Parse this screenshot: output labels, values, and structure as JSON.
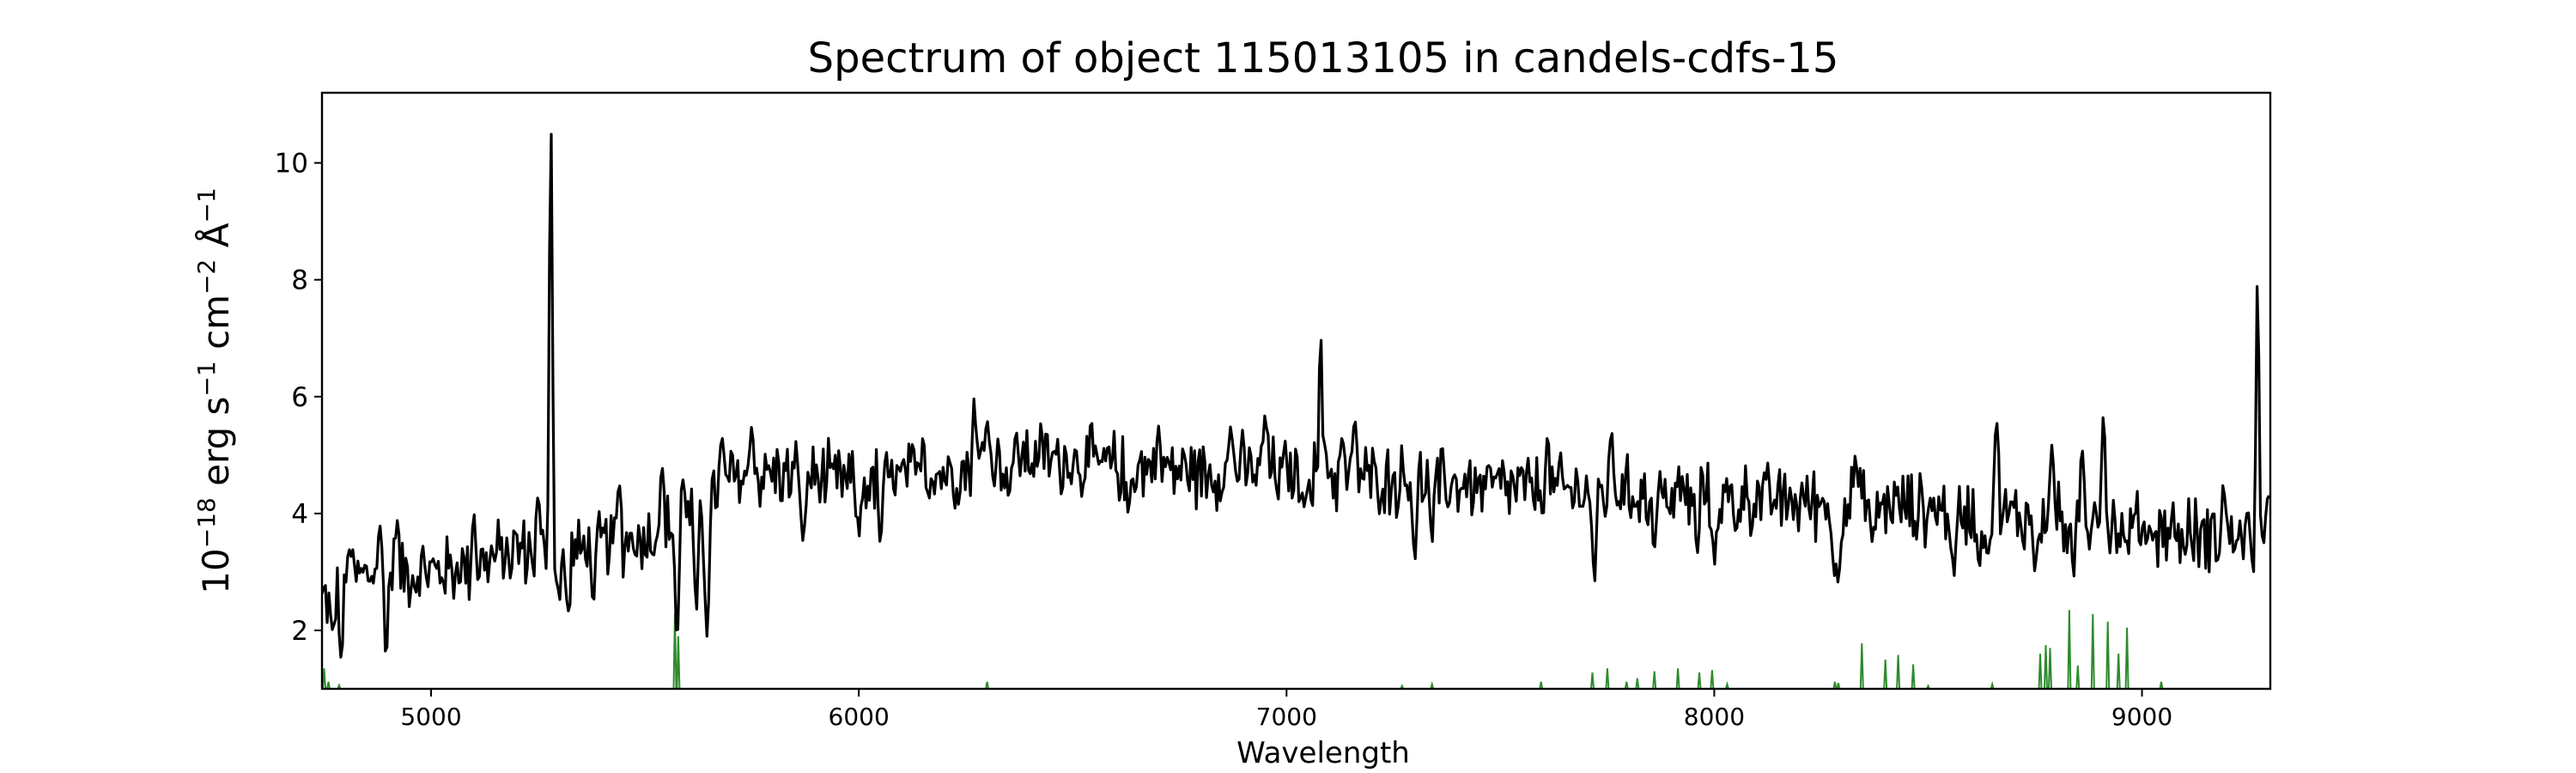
{
  "chart_data": {
    "type": "line",
    "title": "Spectrum of object 115013105 in candels-cdfs-15",
    "xlabel": "Wavelength",
    "ylabel_parts": {
      "base": "10",
      "exp1": "−18",
      "mid1": " erg s",
      "exp2": "−1",
      "mid2": " cm",
      "exp3": "−2",
      "mid3": " Å",
      "exp4": "−1"
    },
    "xlim": [
      4745,
      9300
    ],
    "ylim": [
      1.0,
      11.2
    ],
    "xticks": [
      5000,
      6000,
      7000,
      8000,
      9000
    ],
    "yticks": [
      2,
      4,
      6,
      8,
      10
    ],
    "grid": false,
    "legend": "none",
    "series": [
      {
        "color": "#000000",
        "baseline": [
          [
            4745,
            2.5
          ],
          [
            4800,
            2.9
          ],
          [
            4900,
            3.0
          ],
          [
            5000,
            3.0
          ],
          [
            5100,
            3.1
          ],
          [
            5200,
            3.4
          ],
          [
            5300,
            3.2
          ],
          [
            5400,
            3.5
          ],
          [
            5500,
            3.6
          ],
          [
            5600,
            3.9
          ],
          [
            5700,
            4.6
          ],
          [
            5800,
            4.7
          ],
          [
            5900,
            4.6
          ],
          [
            6000,
            4.5
          ],
          [
            6100,
            4.6
          ],
          [
            6200,
            4.7
          ],
          [
            6300,
            4.9
          ],
          [
            6400,
            5.0
          ],
          [
            6500,
            4.9
          ],
          [
            6600,
            4.8
          ],
          [
            6700,
            4.8
          ],
          [
            6800,
            4.7
          ],
          [
            6900,
            4.75
          ],
          [
            7000,
            4.7
          ],
          [
            7200,
            4.6
          ],
          [
            7400,
            4.5
          ],
          [
            7600,
            4.4
          ],
          [
            7800,
            4.35
          ],
          [
            8000,
            4.3
          ],
          [
            8200,
            4.2
          ],
          [
            8400,
            4.15
          ],
          [
            8600,
            4.0
          ],
          [
            8800,
            3.9
          ],
          [
            9000,
            3.75
          ],
          [
            9200,
            3.6
          ],
          [
            9300,
            3.7
          ]
        ],
        "features": [
          [
            4770,
            2.0,
            8
          ],
          [
            4790,
            1.5,
            6
          ],
          [
            4810,
            3.4,
            6
          ],
          [
            4880,
            3.8,
            6
          ],
          [
            4895,
            1.5,
            5
          ],
          [
            4920,
            3.9,
            6
          ],
          [
            5100,
            4.0,
            6
          ],
          [
            5250,
            4.3,
            6
          ],
          [
            5280,
            10.8,
            5
          ],
          [
            5300,
            2.5,
            5
          ],
          [
            5320,
            2.3,
            6
          ],
          [
            5380,
            2.5,
            6
          ],
          [
            5440,
            4.5,
            6
          ],
          [
            5540,
            4.8,
            6
          ],
          [
            5575,
            1.8,
            6
          ],
          [
            5590,
            4.6,
            6
          ],
          [
            5620,
            2.3,
            6
          ],
          [
            5645,
            1.9,
            7
          ],
          [
            5680,
            5.3,
            6
          ],
          [
            5750,
            5.5,
            6
          ],
          [
            5870,
            3.5,
            6
          ],
          [
            6000,
            3.6,
            6
          ],
          [
            6050,
            3.5,
            6
          ],
          [
            6150,
            5.3,
            6
          ],
          [
            6270,
            6.0,
            5
          ],
          [
            6300,
            5.6,
            6
          ],
          [
            6350,
            4.3,
            6
          ],
          [
            6630,
            4.0,
            6
          ],
          [
            6700,
            5.5,
            6
          ],
          [
            6870,
            5.5,
            6
          ],
          [
            6950,
            5.7,
            6
          ],
          [
            7040,
            4.1,
            6
          ],
          [
            7080,
            7.05,
            5
          ],
          [
            7090,
            5.2,
            6
          ],
          [
            7130,
            5.3,
            6
          ],
          [
            7160,
            5.6,
            6
          ],
          [
            7300,
            3.2,
            6
          ],
          [
            7340,
            3.5,
            6
          ],
          [
            7610,
            5.3,
            6
          ],
          [
            7720,
            2.8,
            6
          ],
          [
            7760,
            5.4,
            6
          ],
          [
            7860,
            3.4,
            6
          ],
          [
            7960,
            3.3,
            6
          ],
          [
            8000,
            3.1,
            6
          ],
          [
            8050,
            3.7,
            6
          ],
          [
            8280,
            2.9,
            6
          ],
          [
            8290,
            2.8,
            6
          ],
          [
            8330,
            5.0,
            6
          ],
          [
            8370,
            3.5,
            6
          ],
          [
            8560,
            2.9,
            6
          ],
          [
            8620,
            3.1,
            6
          ],
          [
            8640,
            3.3,
            6
          ],
          [
            8660,
            5.6,
            6
          ],
          [
            8750,
            3.0,
            6
          ],
          [
            8790,
            5.2,
            6
          ],
          [
            8840,
            2.9,
            6
          ],
          [
            8860,
            5.1,
            6
          ],
          [
            8890,
            4.2,
            6
          ],
          [
            8910,
            5.7,
            6
          ],
          [
            8960,
            3.5,
            6
          ],
          [
            9020,
            3.7,
            6
          ],
          [
            9100,
            3.3,
            6
          ],
          [
            9190,
            4.5,
            6
          ],
          [
            9260,
            3.0,
            6
          ],
          [
            9270,
            8.05,
            5
          ],
          [
            9285,
            3.5,
            6
          ],
          [
            9295,
            4.3,
            6
          ]
        ],
        "noise_amplitude": 0.5
      },
      {
        "color": "#2e8b2e",
        "baseline_value": 1.0,
        "lines": [
          [
            4750,
            1.35
          ],
          [
            4760,
            1.12
          ],
          [
            4785,
            1.06
          ],
          [
            5570,
            2.3
          ],
          [
            5578,
            1.9
          ],
          [
            6300,
            1.12
          ],
          [
            7270,
            1.05
          ],
          [
            7340,
            1.08
          ],
          [
            7595,
            1.12
          ],
          [
            7715,
            1.28
          ],
          [
            7750,
            1.35
          ],
          [
            7795,
            1.12
          ],
          [
            7820,
            1.18
          ],
          [
            7860,
            1.3
          ],
          [
            7915,
            1.35
          ],
          [
            7965,
            1.28
          ],
          [
            7995,
            1.32
          ],
          [
            8030,
            1.08
          ],
          [
            8282,
            1.12
          ],
          [
            8290,
            1.1
          ],
          [
            8345,
            1.78
          ],
          [
            8400,
            1.5
          ],
          [
            8430,
            1.58
          ],
          [
            8465,
            1.42
          ],
          [
            8500,
            1.05
          ],
          [
            8650,
            1.08
          ],
          [
            8762,
            1.6
          ],
          [
            8775,
            1.75
          ],
          [
            8785,
            1.7
          ],
          [
            8830,
            2.35
          ],
          [
            8850,
            1.4
          ],
          [
            8885,
            2.28
          ],
          [
            8920,
            2.15
          ],
          [
            8945,
            1.6
          ],
          [
            8965,
            2.05
          ],
          [
            9045,
            1.12
          ]
        ]
      }
    ]
  }
}
